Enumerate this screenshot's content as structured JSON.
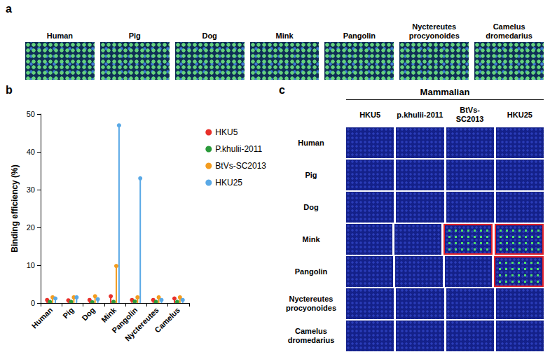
{
  "chart_data": {
    "type": "bar",
    "marker": "circle",
    "categories": [
      "Human",
      "Pig",
      "Dog",
      "Mink",
      "Pangolin",
      "Nyctereutes",
      "Camelus"
    ],
    "series": [
      {
        "name": "HKU5",
        "color": "#e8302a",
        "values": [
          0.8,
          0.7,
          0.8,
          1.8,
          0.8,
          0.8,
          1.2
        ]
      },
      {
        "name": "P.khulii-2011",
        "color": "#2a9a3a",
        "values": [
          0.3,
          0.3,
          0.2,
          0.3,
          0.4,
          0.3,
          0.3
        ]
      },
      {
        "name": "BtVs-SC2013",
        "color": "#f39c1f",
        "values": [
          1.5,
          1.5,
          1.8,
          9.8,
          1.5,
          1.5,
          1.5
        ]
      },
      {
        "name": "HKU25",
        "color": "#5aa9e6",
        "values": [
          1.2,
          1.5,
          1.0,
          47,
          33,
          0.8,
          0.8
        ]
      }
    ],
    "ylabel": "Binding efficiency (%)",
    "ylim": [
      0,
      50
    ],
    "yticks": [
      0,
      10,
      20,
      30,
      40,
      50
    ],
    "legend": "right",
    "grid": false
  },
  "figure": {
    "panel_a": {
      "letter": "a",
      "labels": [
        "Human",
        "Pig",
        "Dog",
        "Mink",
        "Pangolin",
        "Nyctereutes procyonoides",
        "Camelus dromedarius"
      ]
    },
    "panel_b": {
      "letter": "b"
    },
    "panel_c": {
      "letter": "c",
      "header": "Mammalian",
      "columns": [
        "HKU5",
        "p.khulii-2011",
        "BtVs-SC2013",
        "HKU25"
      ],
      "rows": [
        "Human",
        "Pig",
        "Dog",
        "Mink",
        "Pangolin",
        "Nyctereutes procyonoides",
        "Camelus dromedarius"
      ],
      "highlighted": [
        [
          "Mink",
          "BtVs-SC2013"
        ],
        [
          "Mink",
          "HKU25"
        ],
        [
          "Pangolin",
          "HKU25"
        ]
      ]
    }
  }
}
